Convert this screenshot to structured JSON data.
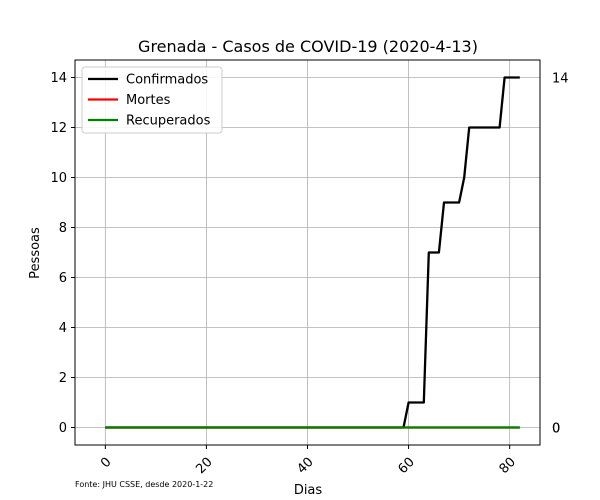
{
  "chart_data": {
    "type": "line",
    "title": "Grenada - Casos de COVID-19 (2020-4-13)",
    "xlabel": "Dias",
    "ylabel": "Pessoas",
    "xlim": [
      -6,
      86
    ],
    "ylim": [
      -0.7,
      14.7
    ],
    "xticks": [
      0,
      20,
      40,
      60,
      80
    ],
    "yticks": [
      0,
      2,
      4,
      6,
      8,
      10,
      12,
      14
    ],
    "grid": true,
    "legend_position": "top-left",
    "source": "Fonte: JHU CSSE, desde 2020-1-22",
    "right_labels": [
      {
        "value": 14,
        "text": "14"
      },
      {
        "value": 0,
        "text": "0"
      },
      {
        "value": 0,
        "text": "0"
      }
    ],
    "series": [
      {
        "name": "Confirmados",
        "color": "#000000",
        "x": [
          0,
          59,
          60,
          63,
          64,
          66,
          67,
          70,
          71,
          72,
          78,
          79,
          82
        ],
        "y": [
          0,
          0,
          1,
          1,
          7,
          7,
          9,
          9,
          10,
          12,
          12,
          14,
          14
        ]
      },
      {
        "name": "Mortes",
        "color": "#ff0000",
        "x": [
          0,
          82
        ],
        "y": [
          0,
          0
        ]
      },
      {
        "name": "Recuperados",
        "color": "#008000",
        "x": [
          0,
          82
        ],
        "y": [
          0,
          0
        ]
      }
    ]
  }
}
